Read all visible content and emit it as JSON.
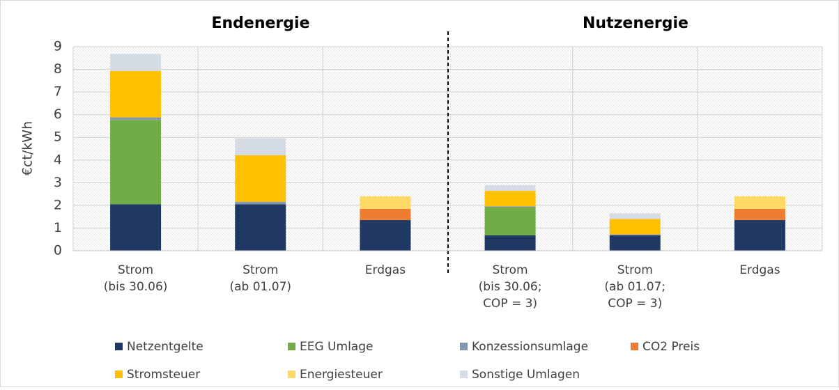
{
  "chart_data": {
    "type": "bar",
    "stacked": true,
    "annotations": [
      "Endenergie",
      "Nutzenergie"
    ],
    "y_label": "€ct/kWh",
    "categories": [
      [
        "Strom",
        "(bis 30.06)"
      ],
      [
        "Strom",
        "(ab 01.07)"
      ],
      [
        "Erdgas"
      ],
      [
        "Strom",
        "(bis 30.06;",
        "COP = 3)"
      ],
      [
        "Strom",
        "(ab 01.07;",
        "COP = 3)"
      ],
      [
        "Erdgas"
      ]
    ],
    "series": [
      {
        "name": "Netzentgelte",
        "color": "#203864",
        "values": [
          2.05,
          2.05,
          1.35,
          0.68,
          0.68,
          1.35
        ]
      },
      {
        "name": "EEG Umlage",
        "color": "#70ad47",
        "values": [
          3.72,
          0,
          0,
          1.24,
          0,
          0
        ]
      },
      {
        "name": "Konzessionsumlage",
        "color": "#8497b0",
        "values": [
          0.11,
          0.11,
          0,
          0.04,
          0.04,
          0
        ]
      },
      {
        "name": "CO2 Preis",
        "color": "#ed7d31",
        "values": [
          0,
          0,
          0.5,
          0,
          0,
          0.5
        ]
      },
      {
        "name": "Stromsteuer",
        "color": "#ffc000",
        "values": [
          2.05,
          2.05,
          0,
          0.68,
          0.68,
          0
        ]
      },
      {
        "name": "Energiesteuer",
        "color": "#ffd966",
        "values": [
          0,
          0,
          0.55,
          0,
          0,
          0.55
        ]
      },
      {
        "name": "Sonstige Umlagen",
        "color": "#d6dce5",
        "values": [
          0.75,
          0.75,
          0,
          0.25,
          0.25,
          0
        ]
      }
    ],
    "ylim": [
      0,
      9
    ],
    "yticks": [
      0,
      1,
      2,
      3,
      4,
      5,
      6,
      7,
      8,
      9
    ],
    "grid": true
  }
}
